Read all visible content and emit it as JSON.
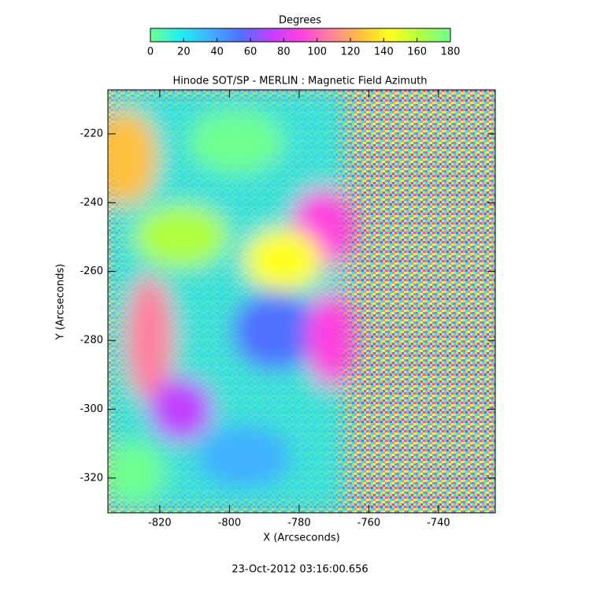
{
  "chart_data": {
    "type": "image",
    "title": "Hinode SOT/SP - MERLIN : Magnetic Field Azimuth",
    "x_label": "X (Arcseconds)",
    "y_label": "Y (Arcseconds)",
    "xlim": [
      -834.9,
      -723.7
    ],
    "ylim": [
      -330.1,
      -207.2
    ],
    "xticks": [
      -820,
      -800,
      -780,
      -760,
      -740
    ],
    "yticks": [
      -220,
      -240,
      -260,
      -280,
      -300,
      -320
    ],
    "colorbar": {
      "title": "Degrees",
      "lim": [
        0,
        180
      ],
      "ticks": [
        0,
        20,
        40,
        60,
        80,
        100,
        120,
        140,
        160,
        180
      ],
      "colors": [
        "#70ff90",
        "#20f0f0",
        "#40b0ff",
        "#5070ff",
        "#c040ff",
        "#ff40e0",
        "#ff80a0",
        "#ffc040",
        "#ffff20",
        "#b0ff40",
        "#70ff90"
      ]
    },
    "footer": "23-Oct-2012 03:16:00.656"
  }
}
